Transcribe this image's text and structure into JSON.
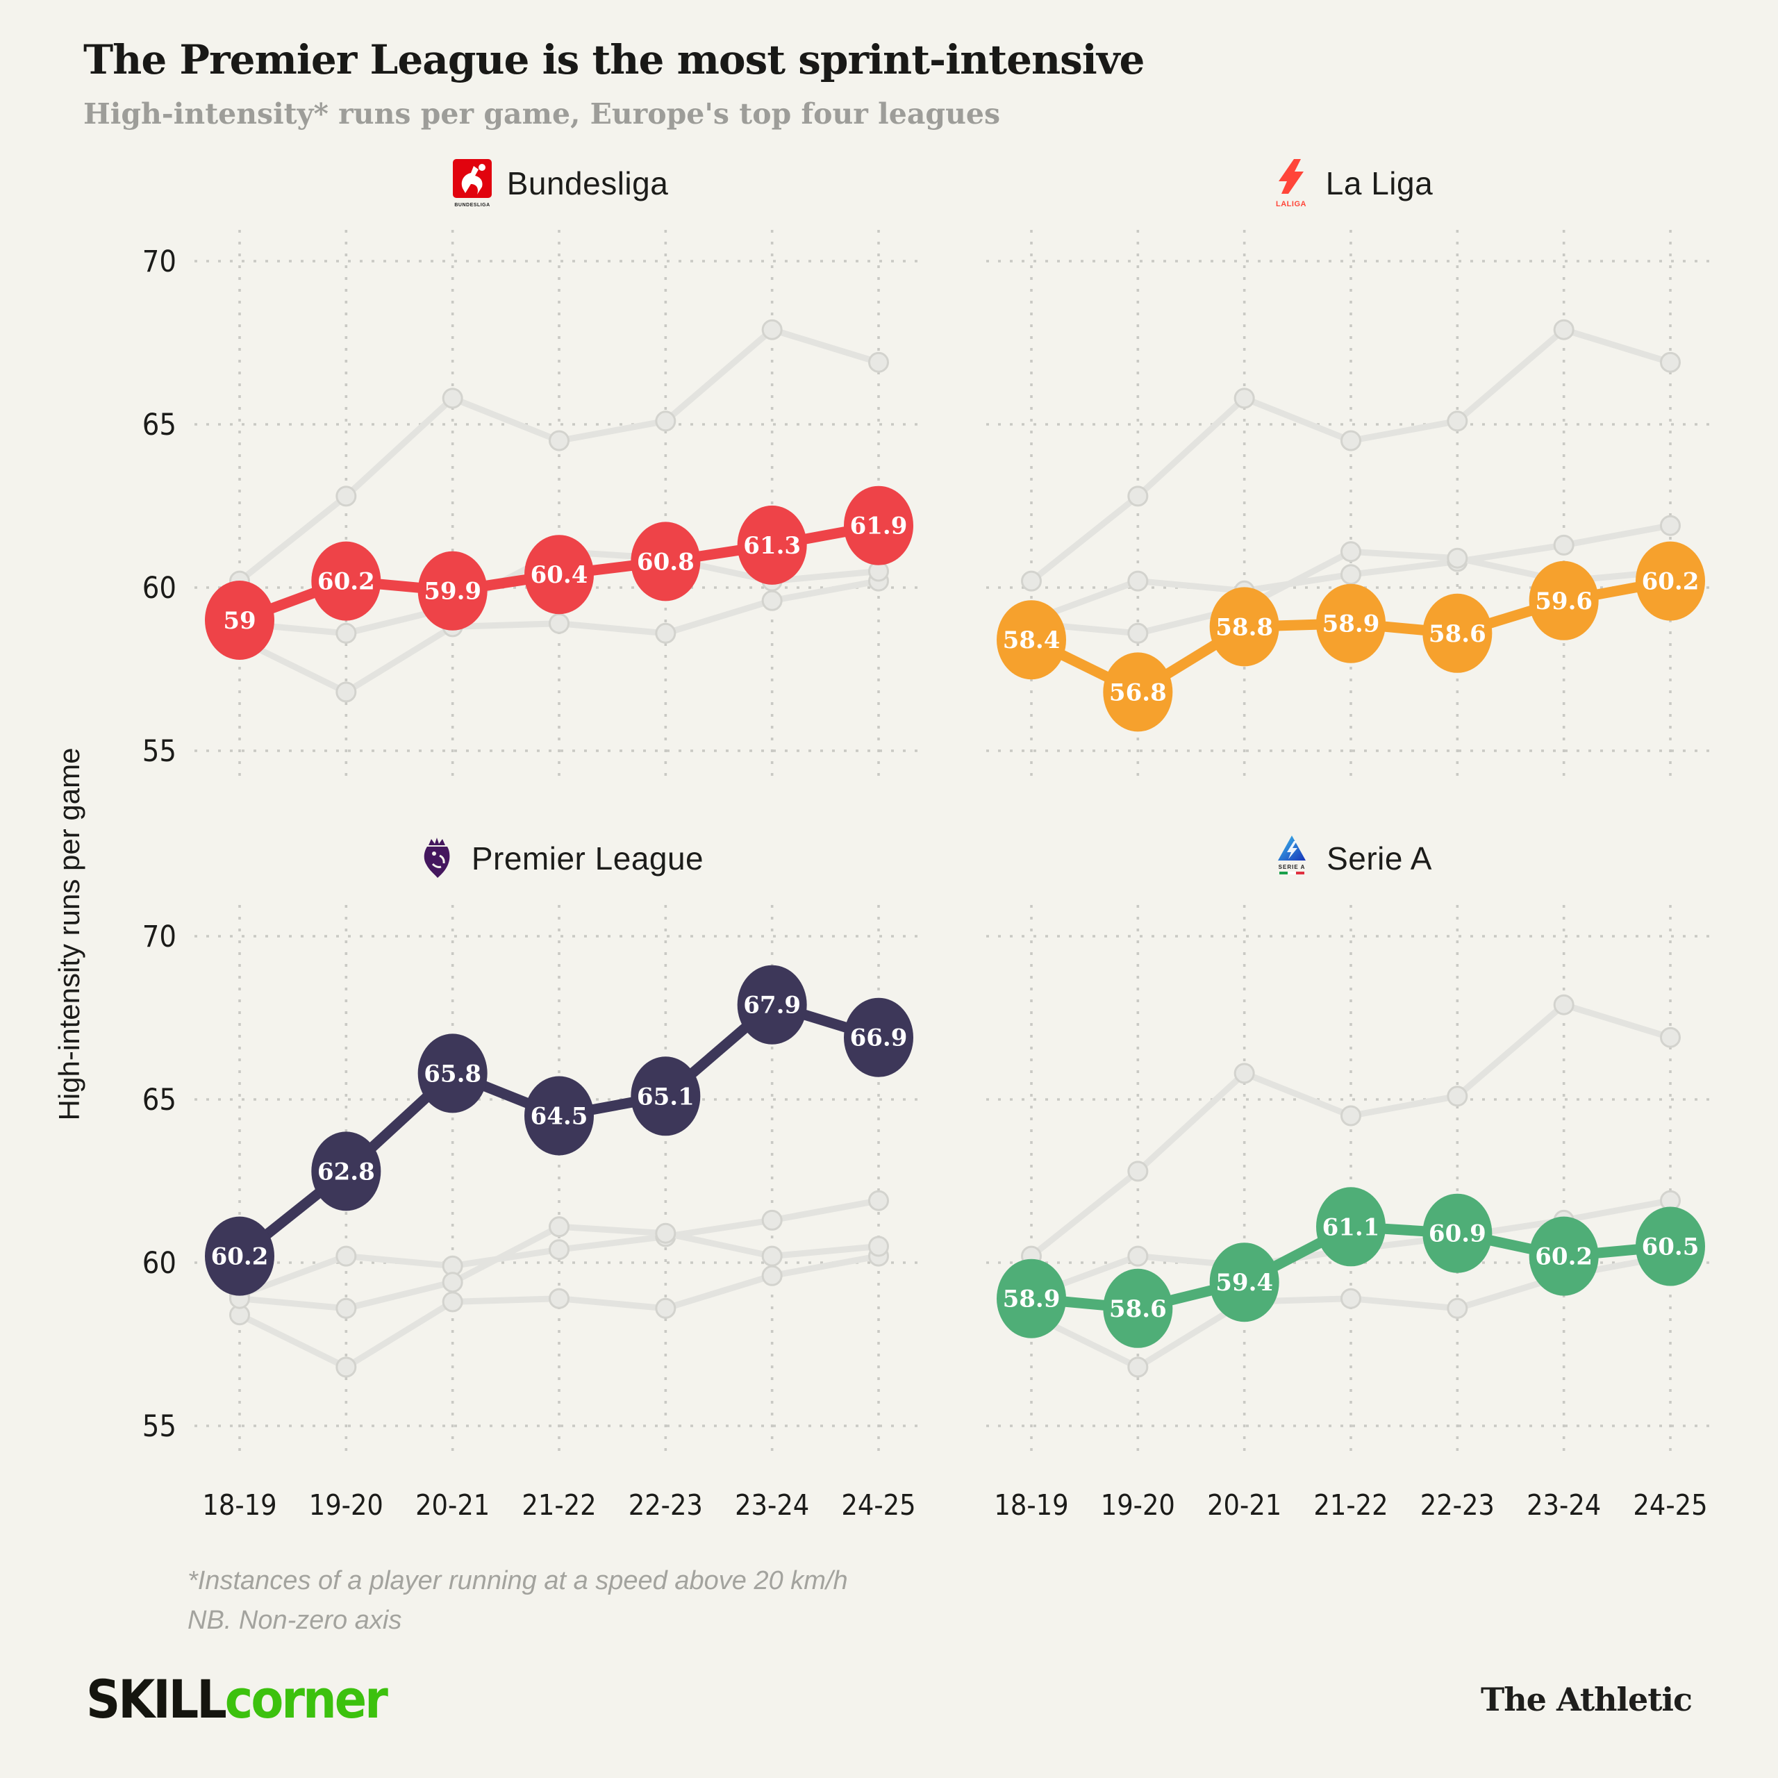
{
  "header": {
    "title": "The Premier League is the most sprint-intensive",
    "subtitle": "High-intensity* runs per game, Europe's top four leagues"
  },
  "chart_data": {
    "type": "line",
    "layout": "2x2 small multiples; each panel highlights one league, other three leagues drawn in muted gray",
    "ylabel": "High-intensity runs per game",
    "ylim": [
      54.8,
      71
    ],
    "yticks": [
      70,
      65,
      60,
      55
    ],
    "grid": "dotted",
    "legend": "none (panel titles with league logos)",
    "categories": [
      "18-19",
      "19-20",
      "20-21",
      "21-22",
      "22-23",
      "23-24",
      "24-25"
    ],
    "series": [
      {
        "name": "Bundesliga",
        "color": "#ee4348",
        "values": [
          59,
          60.2,
          59.9,
          60.4,
          60.8,
          61.3,
          61.9
        ]
      },
      {
        "name": "La Liga",
        "color": "#f6a12d",
        "values": [
          58.4,
          56.8,
          58.8,
          58.9,
          58.6,
          59.6,
          60.2
        ]
      },
      {
        "name": "Premier League",
        "color": "#3d3759",
        "values": [
          60.2,
          62.8,
          65.8,
          64.5,
          65.1,
          67.9,
          66.9
        ]
      },
      {
        "name": "Serie A",
        "color": "#4fae77",
        "values": [
          58.9,
          58.6,
          59.4,
          61.1,
          60.9,
          60.2,
          60.5
        ]
      }
    ],
    "muted_series_color": "#e3e3df",
    "muted_marker_stroke": "#d3d3ce",
    "gridline_color": "#c9c9c4",
    "background_color": "#f4f3ed"
  },
  "footnotes": {
    "line1": "*Instances of a player running at a speed above 20 km/h",
    "line2": "NB. Non-zero axis"
  },
  "footer": {
    "skillcorner_black": "SKILL",
    "skillcorner_green": "corner",
    "athletic": "The Athletic"
  }
}
